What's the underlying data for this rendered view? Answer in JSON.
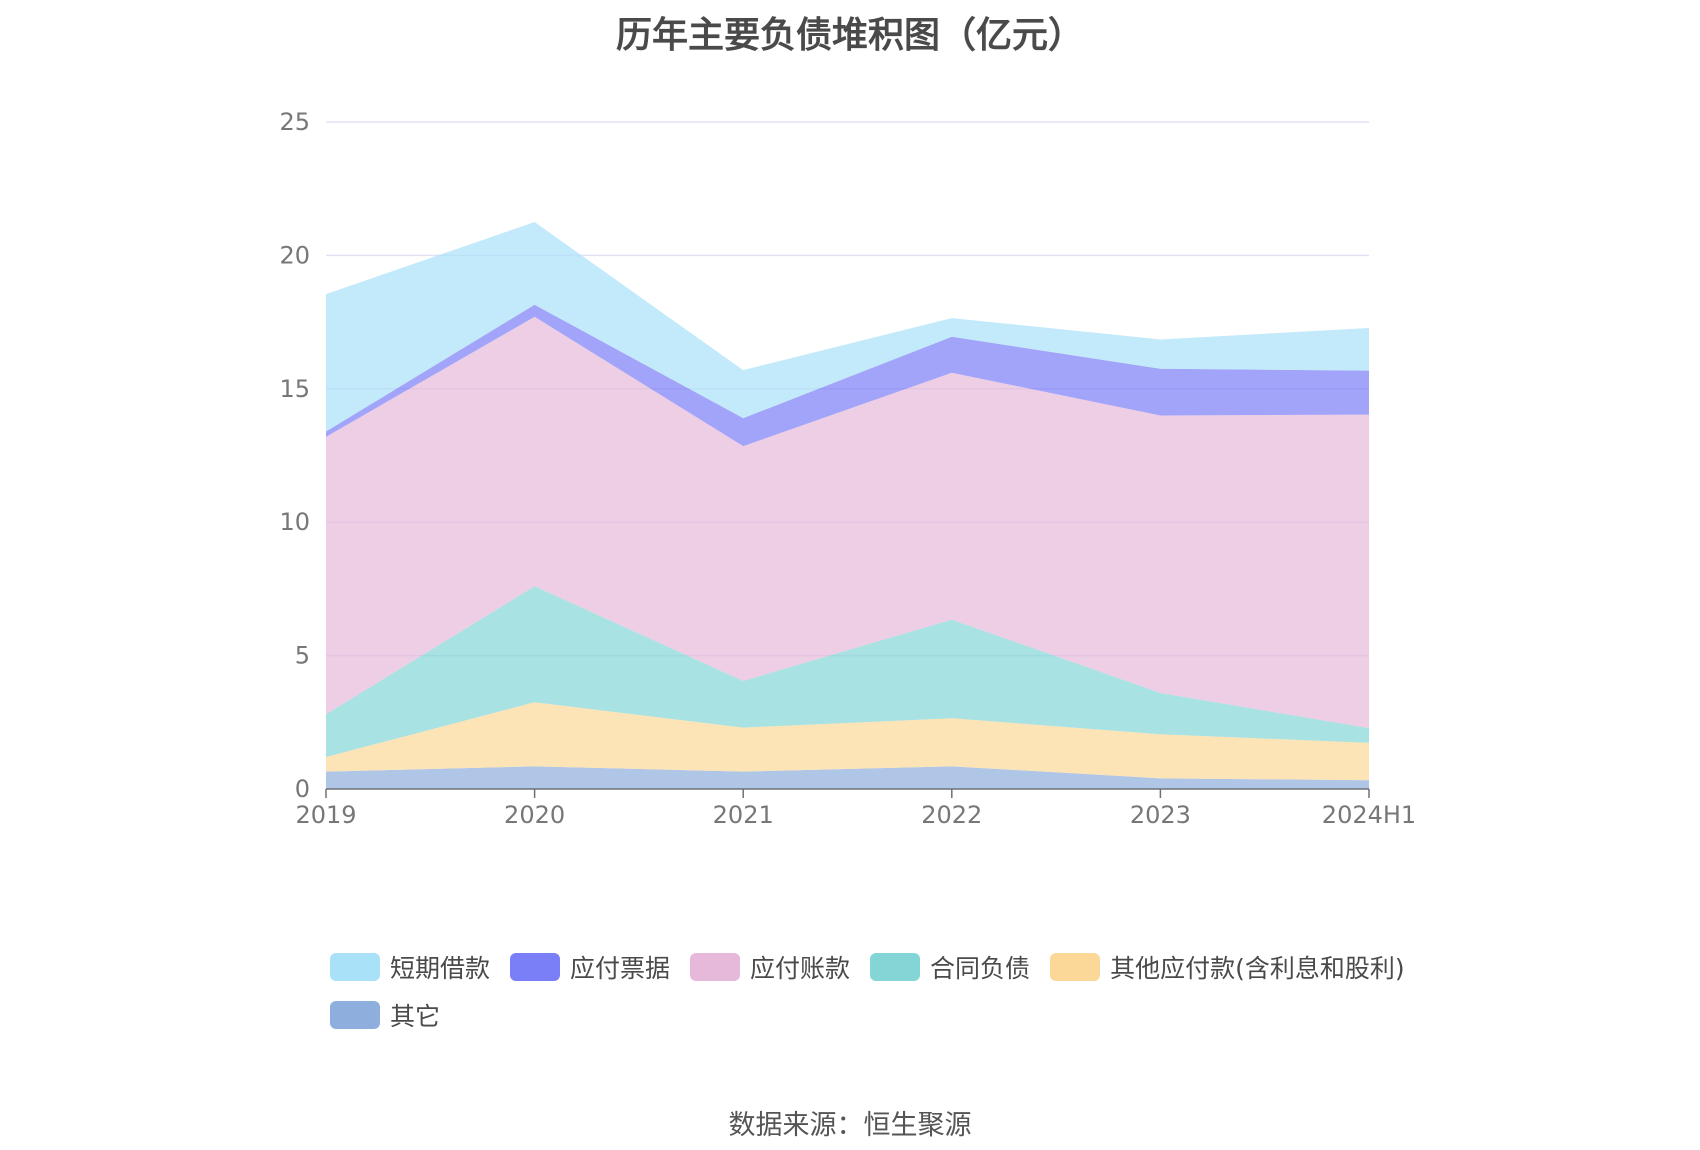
{
  "chart_data": {
    "type": "area",
    "stacked": true,
    "title": "历年主要负债堆积图（亿元）",
    "categories": [
      "2019",
      "2020",
      "2021",
      "2022",
      "2023",
      "2024H1"
    ],
    "ylim": [
      0,
      25
    ],
    "yticks": [
      "0",
      "5",
      "10",
      "15",
      "20",
      "25"
    ],
    "grid": true,
    "legend_position": "bottom",
    "series": [
      {
        "name": "其它",
        "color": "#8eaedd",
        "values": [
          0.65,
          0.85,
          0.65,
          0.85,
          0.4,
          0.33
        ]
      },
      {
        "name": "其他应付款(含利息和股利)",
        "color": "#fcd898",
        "values": [
          0.55,
          2.4,
          1.65,
          1.8,
          1.65,
          1.4
        ]
      },
      {
        "name": "合同负债",
        "color": "#84d6d6",
        "values": [
          1.6,
          4.35,
          1.75,
          3.7,
          1.55,
          0.55
        ]
      },
      {
        "name": "应付账款",
        "color": "#e6b9da",
        "values": [
          10.4,
          10.1,
          8.8,
          9.25,
          10.4,
          11.75
        ]
      },
      {
        "name": "应付票据",
        "color": "#7a7ef7",
        "values": [
          0.2,
          0.45,
          1.05,
          1.35,
          1.75,
          1.65
        ]
      },
      {
        "name": "短期借款",
        "color": "#a9e1f8",
        "values": [
          5.15,
          3.1,
          1.8,
          0.7,
          1.1,
          1.6
        ]
      }
    ],
    "source": "数据来源：恒生聚源"
  }
}
